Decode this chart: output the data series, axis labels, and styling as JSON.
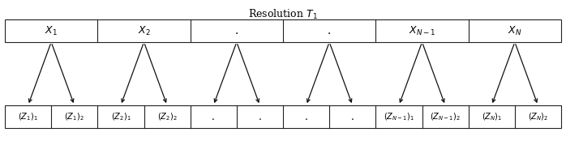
{
  "title": "Resolution $T_1$",
  "title_fontsize": 9,
  "top_labels": [
    "$X_1$",
    "$X_2$",
    ".",
    ".",
    "$X_{N-1}$",
    "$X_N$"
  ],
  "bottom_labels": [
    "$(Z_1)_1$",
    "$(Z_1)_2$",
    "$(Z_2)_1$",
    "$(Z_2)_2$",
    ".",
    ".",
    ".",
    ".",
    "$(Z_{N-1})_1$",
    "$(Z_{N-1})_2$",
    "$(Z_N)_1$",
    "$(Z_N)_2$"
  ],
  "bg_color": "#ffffff",
  "box_color": "#ffffff",
  "border_color": "#222222",
  "text_color": "#000000",
  "arrow_color": "#111111",
  "fig_width": 6.98,
  "fig_height": 1.74,
  "dpi": 100
}
